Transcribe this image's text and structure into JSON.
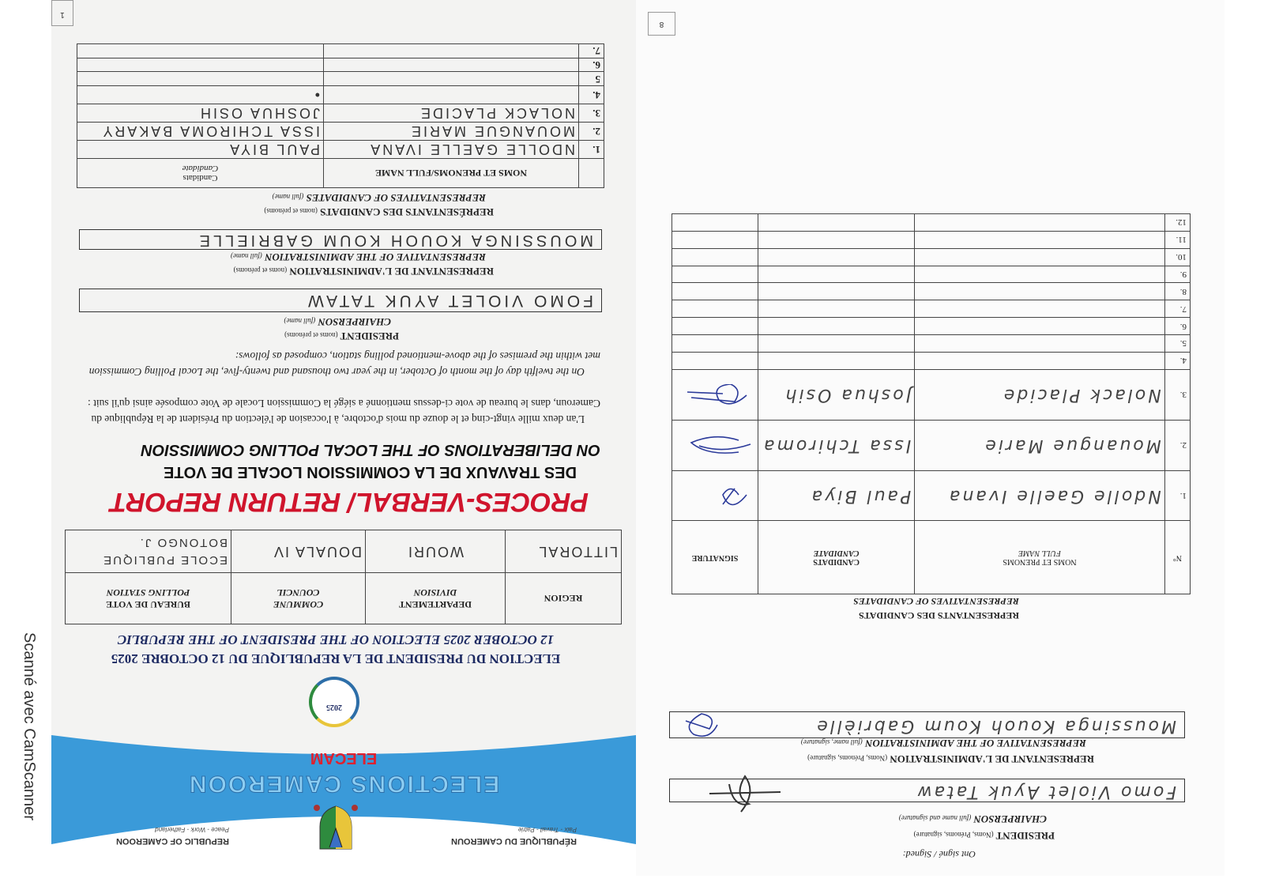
{
  "watermark": "Scanné avec CamScanner",
  "left_page": {
    "page_number": "1",
    "header": {
      "republique_fr": "RÉPUBLIQUE DU CAMEROUN",
      "motto_fr": "Paix - Travail - Patrie",
      "republic_en": "REPUBLIC OF CAMEROON",
      "motto_en": "Peace - Work - Fatherland",
      "org_name": "ELECTIONS CAMEROON",
      "org_acronym": "ELECAM",
      "logo_year": "2025",
      "band_color": "#3a9ad9"
    },
    "title_fr": "ELECTION DU PRESIDENT DE LA REPUBLIQUE DU 12 OCTOBRE 2025",
    "title_en": "12 OCTOBER 2025 ELECTION OF THE PRESIDENT OF THE REPUBLIC",
    "location_table": {
      "headers": [
        {
          "fr": "REGION",
          "en": ""
        },
        {
          "fr": "DEPARTEMENT",
          "en": "DIVISION"
        },
        {
          "fr": "COMMUNE",
          "en": "COUNCIL"
        },
        {
          "fr": "BUREAU DE VOTE",
          "en": "POLLING STATION"
        }
      ],
      "values": [
        "LITTORAL",
        "WOURI",
        "DOUALA IV",
        "ECOLE PUBLIQUE BOTONGO J."
      ]
    },
    "report_title": "PROCES-VERBAL/ RETURN REPORT",
    "report_color": "#d0142c",
    "subtitle_fr": "DES TRAVAUX DE LA COMMISSION LOCALE DE VOTE",
    "subtitle_en": "ON DELIBERATIONS OF THE LOCAL POLLING COMMISSION",
    "paragraph_fr": "L'an deux mille vingt-cinq et le douze du mois d'octobre, à l'occasion de l'élection du Président de la République du Cameroun, dans le bureau de vote ci-dessus mentionné a siégé la Commission Locale de Vote composée ainsi qu'il suit :",
    "paragraph_en": "On the twelfth day of the month of October, in the year two thousand and twenty-five, the Local Polling Commission met within the premises of the above-mentioned polling station, composed as follows:",
    "president": {
      "label_fr": "PRESIDENT",
      "hint_fr": "(noms et prénoms)",
      "label_en": "CHAIRPERSON",
      "hint_en": "(full name)",
      "value": "FOMO VIOLET AYUK TATAW"
    },
    "admin_rep": {
      "label_fr": "REPRESENTANT DE L'ADMINISTRATION",
      "hint_fr": "(noms et prénoms)",
      "label_en": "REPRESENTATIVE OF THE ADMINISTRATION",
      "hint_en": "(full name)",
      "value": "MOUSSINGA KOUOH KOUM GABRIELLE"
    },
    "candidates": {
      "label_fr": "REPRÉSENTANTS DES CANDIDATS",
      "hint_fr": "(noms et prénoms)",
      "label_en": "REPRESENTATIVES OF CANDIDATES",
      "hint_en": "(full name)",
      "col_name": "NOMS ET PRENOMS/FULL NAME",
      "col_candidate_fr": "Candidats",
      "col_candidate_en": "Candidate",
      "rows": [
        {
          "n": "1.",
          "name": "NDOLLE GAELLE IVANA",
          "candidate": "PAUL BIYA"
        },
        {
          "n": "2.",
          "name": "MOUANGUE MARIE",
          "candidate": "ISSA TCHIROMA BAKARY"
        },
        {
          "n": "3.",
          "name": "NOLACK PLACIDE",
          "candidate": "JOSHUA OSIH"
        },
        {
          "n": "4.",
          "name": "",
          "candidate": "•"
        },
        {
          "n": "5",
          "name": "",
          "candidate": ""
        },
        {
          "n": "6.",
          "name": "",
          "candidate": ""
        },
        {
          "n": "7.",
          "name": "",
          "candidate": ""
        }
      ]
    }
  },
  "right_page": {
    "page_number": "8",
    "signed_label": "Ont signé / Signed:",
    "president": {
      "label_fr": "PRESIDENT",
      "hint_fr": "(Noms, Prénoms, signature)",
      "label_en": "CHAIRPERSON",
      "hint_en": "(full name and signature)",
      "value": "Fomo Violet Ayuk Tataw"
    },
    "admin_rep": {
      "label_fr": "REPRESENTANT DE L'ADMINISTRATION",
      "hint_fr": "(Noms, Prénoms, signature)",
      "label_en": "REPRESENTATIVE OF THE ADMINISTRATION",
      "hint_en": "(full name, signature)",
      "value": "Moussinga Kouoh Koum Gabrièlle"
    },
    "candidates": {
      "label_fr": "REPRESENTANTS DES CANDIDATS",
      "label_en": "REPRESENTATIVES OF CANDIDATES",
      "col_n": "N°",
      "col_name_fr": "NOMS ET PRENOMS",
      "col_name_en": "FULL NAME",
      "col_candidate_fr": "CANDIDATS",
      "col_candidate_en": "CANDIDATE",
      "col_signature": "SIGNATURE",
      "rows": [
        {
          "n": "1.",
          "name": "Ndolle Gaelle Ivana",
          "candidate": "Paul Biya",
          "signed": true
        },
        {
          "n": "2.",
          "name": "Mouangue Marie",
          "candidate": "Issa Tchiroma",
          "signed": true
        },
        {
          "n": "3.",
          "name": "Nolack Placide",
          "candidate": "Joshua Osih",
          "signed": true
        },
        {
          "n": "4.",
          "name": "",
          "candidate": "",
          "signed": false
        },
        {
          "n": "5.",
          "name": "",
          "candidate": "",
          "signed": false
        },
        {
          "n": "6.",
          "name": "",
          "candidate": "",
          "signed": false
        },
        {
          "n": "7.",
          "name": "",
          "candidate": "",
          "signed": false
        },
        {
          "n": "8.",
          "name": "",
          "candidate": "",
          "signed": false
        },
        {
          "n": "9.",
          "name": "",
          "candidate": "",
          "signed": false
        },
        {
          "n": "10.",
          "name": "",
          "candidate": "",
          "signed": false
        },
        {
          "n": "11.",
          "name": "",
          "candidate": "",
          "signed": false
        },
        {
          "n": "12.",
          "name": "",
          "candidate": "",
          "signed": false
        }
      ]
    }
  }
}
